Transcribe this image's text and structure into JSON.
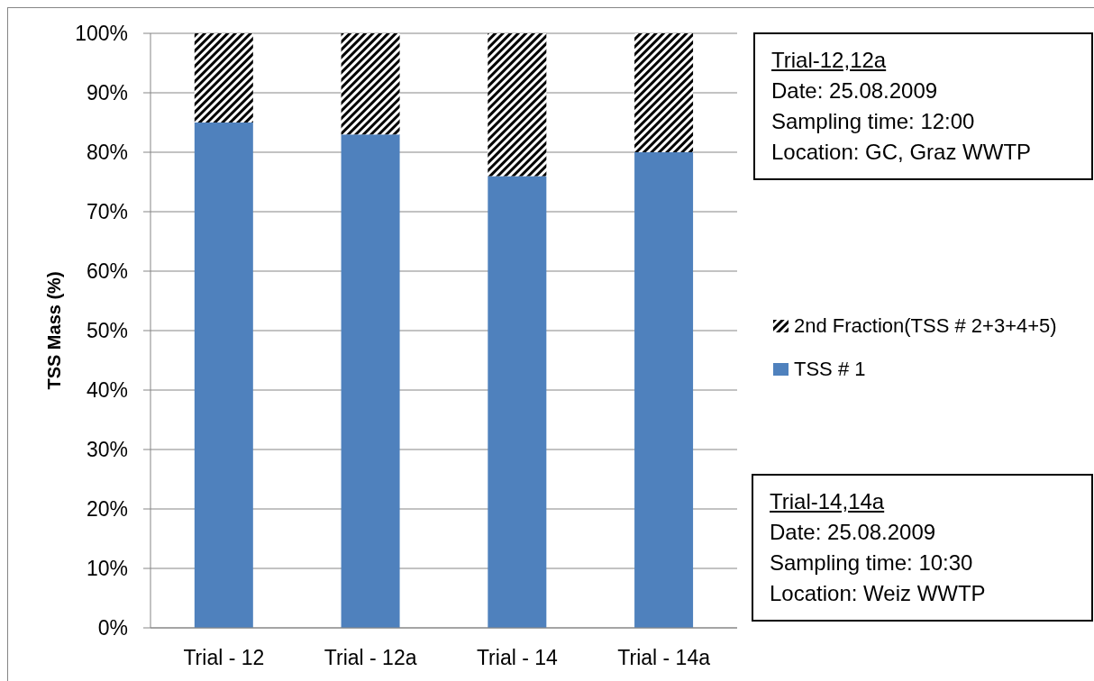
{
  "chart_data": {
    "type": "bar",
    "ylabel": "TSS Mass (%)",
    "categories": [
      "Trial - 12",
      "Trial - 12a",
      "Trial - 14",
      "Trial - 14a"
    ],
    "series": [
      {
        "name": "TSS # 1",
        "color": "#4f81bd",
        "values": [
          85,
          83,
          76,
          80
        ]
      },
      {
        "name": "2nd Fraction(TSS # 2+3+4+5)",
        "color": "#000000",
        "values": [
          15,
          17,
          24,
          20
        ]
      }
    ],
    "stacked": true,
    "ylim": [
      0,
      100
    ],
    "yticks": [
      {
        "value": 0,
        "label": "0%"
      },
      {
        "value": 10,
        "label": "10%"
      },
      {
        "value": 20,
        "label": "20%"
      },
      {
        "value": 30,
        "label": "30%"
      },
      {
        "value": 40,
        "label": "40%"
      },
      {
        "value": 50,
        "label": "50%"
      },
      {
        "value": 60,
        "label": "60%"
      },
      {
        "value": 70,
        "label": "70%"
      },
      {
        "value": 80,
        "label": "80%"
      },
      {
        "value": 90,
        "label": "90%"
      },
      {
        "value": 100,
        "label": "100%"
      }
    ],
    "grid": "y",
    "legend": "right",
    "annotations": [
      "Trial-12,12a\nDate: 25.08.2009\nSampling time: 12:00\nLocation: GC, Graz WWTP",
      "Trial-14,14a\nDate: 25.08.2009\nSampling time: 10:30\nLocation: Weiz WWTP"
    ]
  }
}
